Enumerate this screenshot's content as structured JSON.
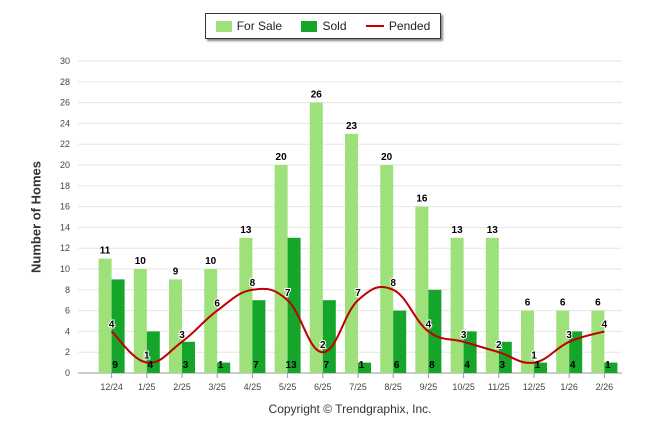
{
  "chart_data": {
    "type": "bar",
    "categories": [
      "12/24",
      "1/25",
      "2/25",
      "3/25",
      "4/25",
      "5/25",
      "6/25",
      "7/25",
      "8/25",
      "9/25",
      "10/25",
      "11/25",
      "12/25",
      "1/26",
      "2/26"
    ],
    "series": [
      {
        "name": "For Sale",
        "type": "bar",
        "color": "#9ee07a",
        "values": [
          11,
          10,
          9,
          10,
          13,
          20,
          26,
          23,
          20,
          16,
          13,
          13,
          6,
          6,
          6
        ]
      },
      {
        "name": "Sold",
        "type": "bar",
        "color": "#14a52a",
        "values": [
          9,
          4,
          3,
          1,
          7,
          13,
          7,
          1,
          6,
          8,
          4,
          3,
          1,
          4,
          1
        ]
      },
      {
        "name": "Pended",
        "type": "line",
        "color": "#c00000",
        "values": [
          4,
          1,
          3,
          6,
          8,
          7,
          2,
          7,
          8,
          4,
          3,
          2,
          1,
          3,
          4
        ]
      }
    ],
    "ylabel": "Number of Homes",
    "ylim": [
      0,
      30
    ],
    "yticks": [
      0,
      2,
      4,
      6,
      8,
      10,
      12,
      14,
      16,
      18,
      20,
      22,
      24,
      26,
      28,
      30
    ],
    "grid": true,
    "legend": "top-center"
  },
  "copyright": "Copyright © Trendgraphix, Inc."
}
